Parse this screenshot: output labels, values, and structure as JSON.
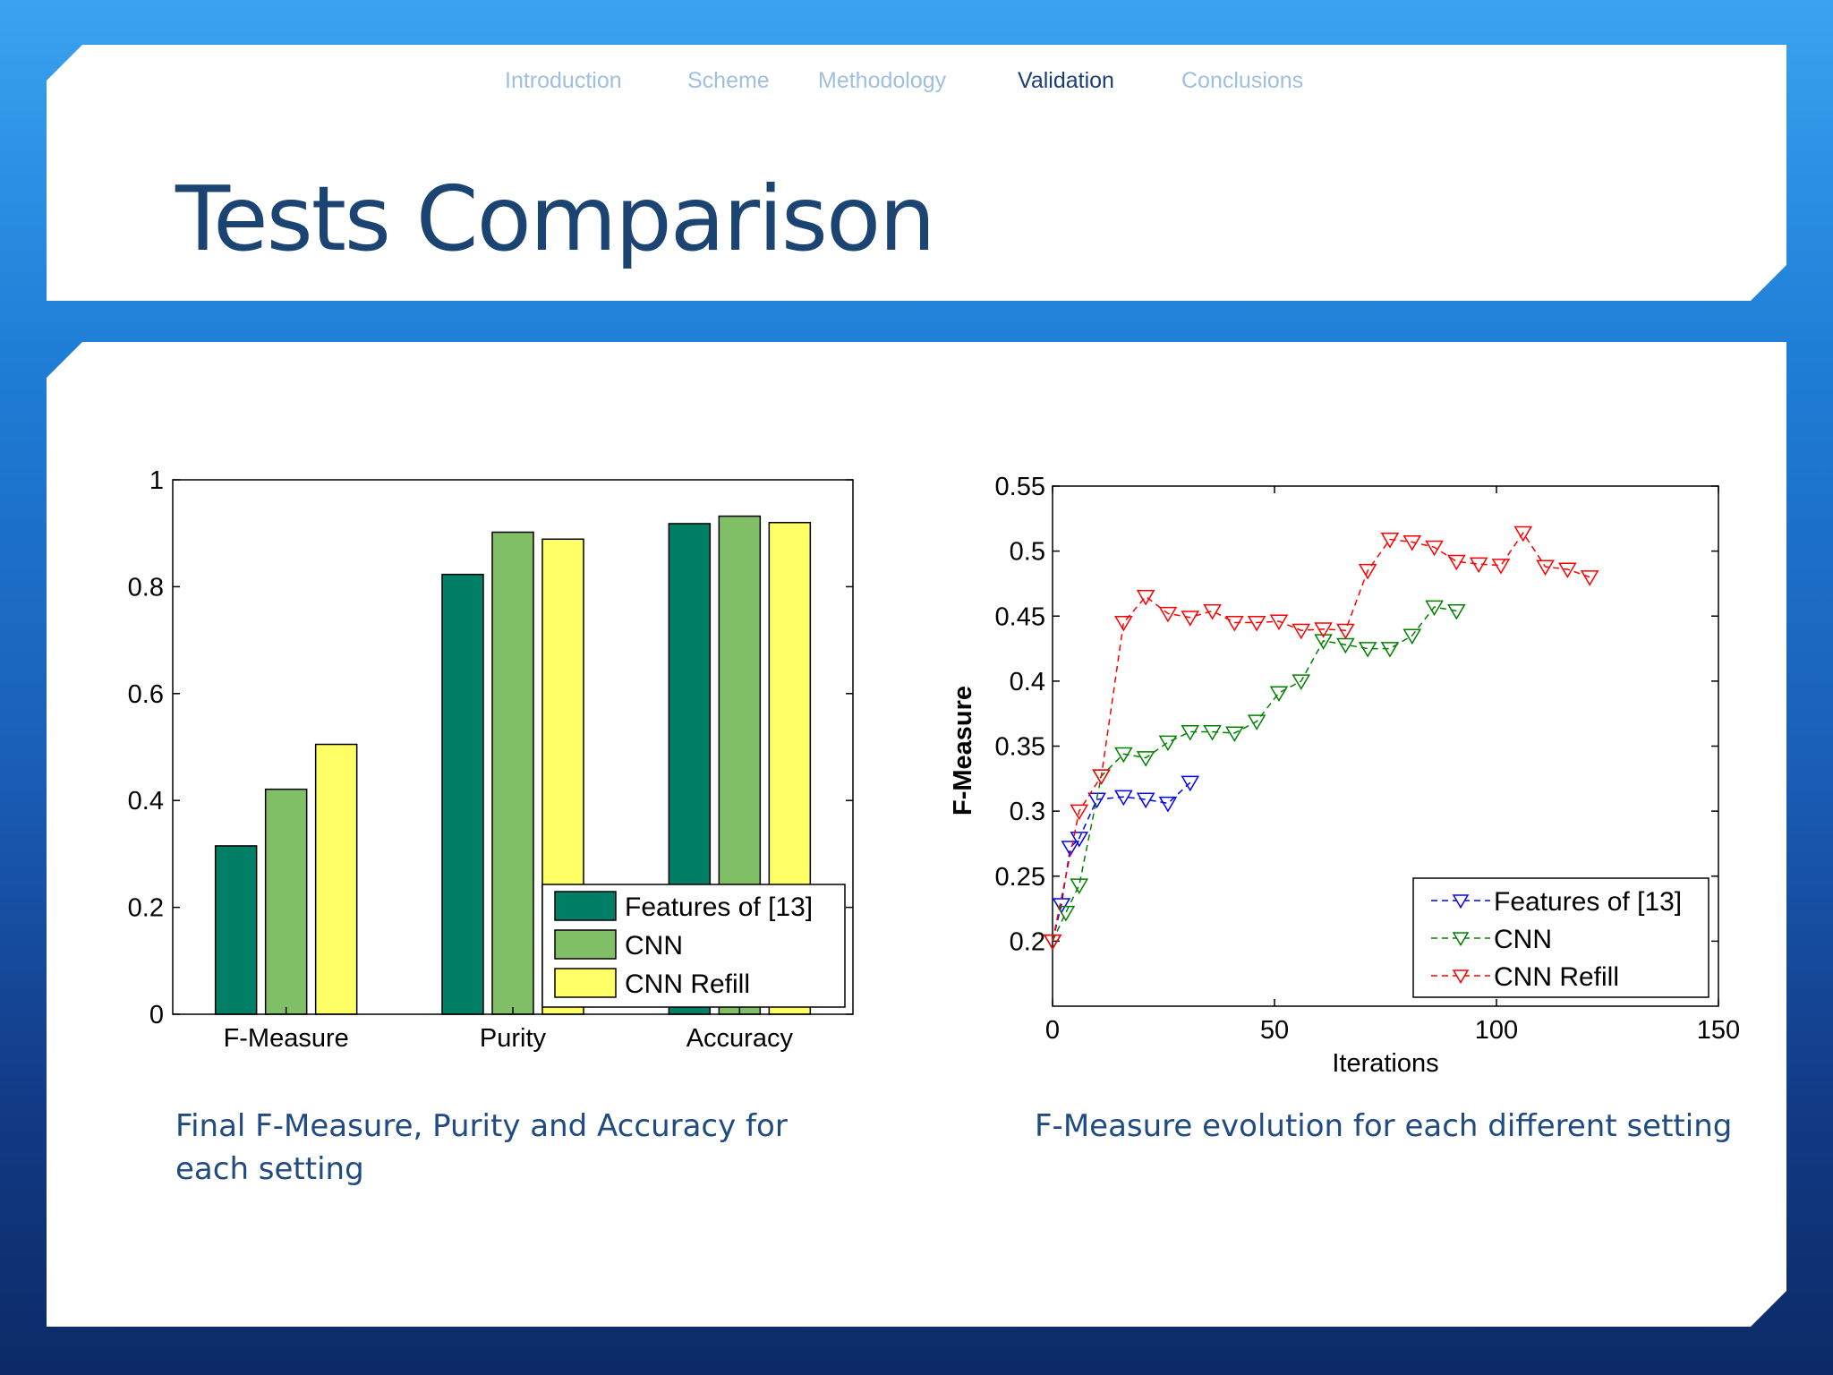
{
  "nav": {
    "items": [
      "Introduction",
      "Scheme",
      "Methodology",
      "Validation",
      "Conclusions"
    ],
    "active": "Validation"
  },
  "title": "Tests Comparison",
  "captions": {
    "left": "Final F-Measure, Purity and Accuracy for each setting",
    "right": "F-Measure evolution for each different setting"
  },
  "chart_data": [
    {
      "type": "bar",
      "categories": [
        "F-Measure",
        "Purity",
        "Accuracy"
      ],
      "series": [
        {
          "name": "Features of [13]",
          "color": "#007f66",
          "values": [
            0.315,
            0.823,
            0.918
          ]
        },
        {
          "name": "CNN",
          "color": "#80bf66",
          "values": [
            0.421,
            0.902,
            0.932
          ]
        },
        {
          "name": "CNN Refill",
          "color": "#ffff66",
          "values": [
            0.505,
            0.889,
            0.92
          ]
        }
      ],
      "ylim": [
        0,
        1
      ],
      "yticks": [
        "0",
        "0.2",
        "0.4",
        "0.6",
        "0.8",
        "1"
      ],
      "legend": "bottom-right",
      "grid": false
    },
    {
      "type": "line",
      "xlabel": "Iterations",
      "ylabel": "F-Measure",
      "xlim": [
        0,
        150
      ],
      "ylim": [
        0.15,
        0.55
      ],
      "xticks": [
        "0",
        "50",
        "100",
        "150"
      ],
      "yticks": [
        "0.2",
        "0.25",
        "0.3",
        "0.35",
        "0.4",
        "0.45",
        "0.5",
        "0.55"
      ],
      "legend": "bottom-right",
      "grid": false,
      "marker": "triangle-down",
      "series": [
        {
          "name": "Features of [13]",
          "color": "#0000ff",
          "x": [
            0,
            2,
            4,
            6,
            10,
            16,
            21,
            26,
            31
          ],
          "y": [
            0.2,
            0.228,
            0.272,
            0.279,
            0.309,
            0.311,
            0.309,
            0.306,
            0.322
          ]
        },
        {
          "name": "CNN",
          "color": "#008000",
          "x": [
            0,
            3,
            6,
            11,
            16,
            21,
            26,
            31,
            36,
            41,
            46,
            51,
            56,
            61,
            66,
            71,
            76,
            81,
            86,
            91
          ],
          "y": [
            0.2,
            0.222,
            0.243,
            0.327,
            0.344,
            0.341,
            0.353,
            0.361,
            0.361,
            0.36,
            0.369,
            0.391,
            0.4,
            0.431,
            0.428,
            0.425,
            0.425,
            0.435,
            0.457,
            0.454
          ]
        },
        {
          "name": "CNN Refill",
          "color": "#ff0000",
          "x": [
            0,
            6,
            11,
            16,
            21,
            26,
            31,
            36,
            41,
            46,
            51,
            56,
            61,
            66,
            71,
            76,
            81,
            86,
            91,
            96,
            101,
            106,
            111,
            116,
            121
          ],
          "y": [
            0.2,
            0.3,
            0.327,
            0.445,
            0.465,
            0.452,
            0.449,
            0.454,
            0.445,
            0.445,
            0.446,
            0.439,
            0.44,
            0.439,
            0.485,
            0.509,
            0.507,
            0.503,
            0.492,
            0.49,
            0.489,
            0.514,
            0.488,
            0.486,
            0.48
          ]
        }
      ]
    }
  ]
}
